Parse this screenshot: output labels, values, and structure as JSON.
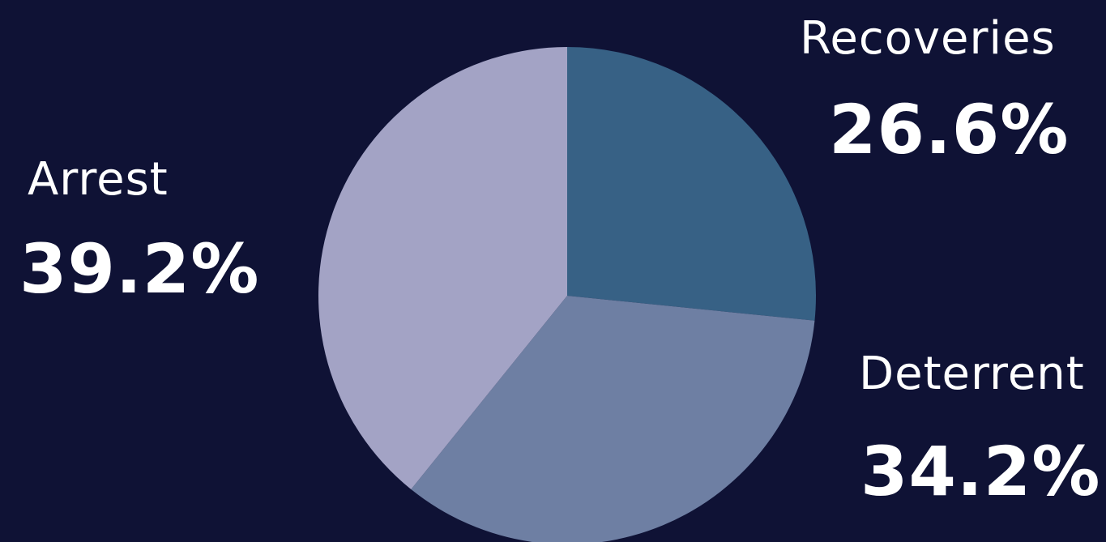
{
  "chart_data": {
    "type": "pie",
    "start_angle_deg": 0,
    "direction": "clockwise",
    "slices": [
      {
        "name": "Recoveries",
        "value": 26.6,
        "label": "26.6%",
        "color": "#376185"
      },
      {
        "name": "Deterrent",
        "value": 34.2,
        "label": "34.2%",
        "color": "#6e7fa3"
      },
      {
        "name": "Arrest",
        "value": 39.2,
        "label": "39.2%",
        "color": "#a3a3c5"
      }
    ]
  },
  "colors": {
    "background": "#0f1235",
    "text": "#ffffff"
  }
}
